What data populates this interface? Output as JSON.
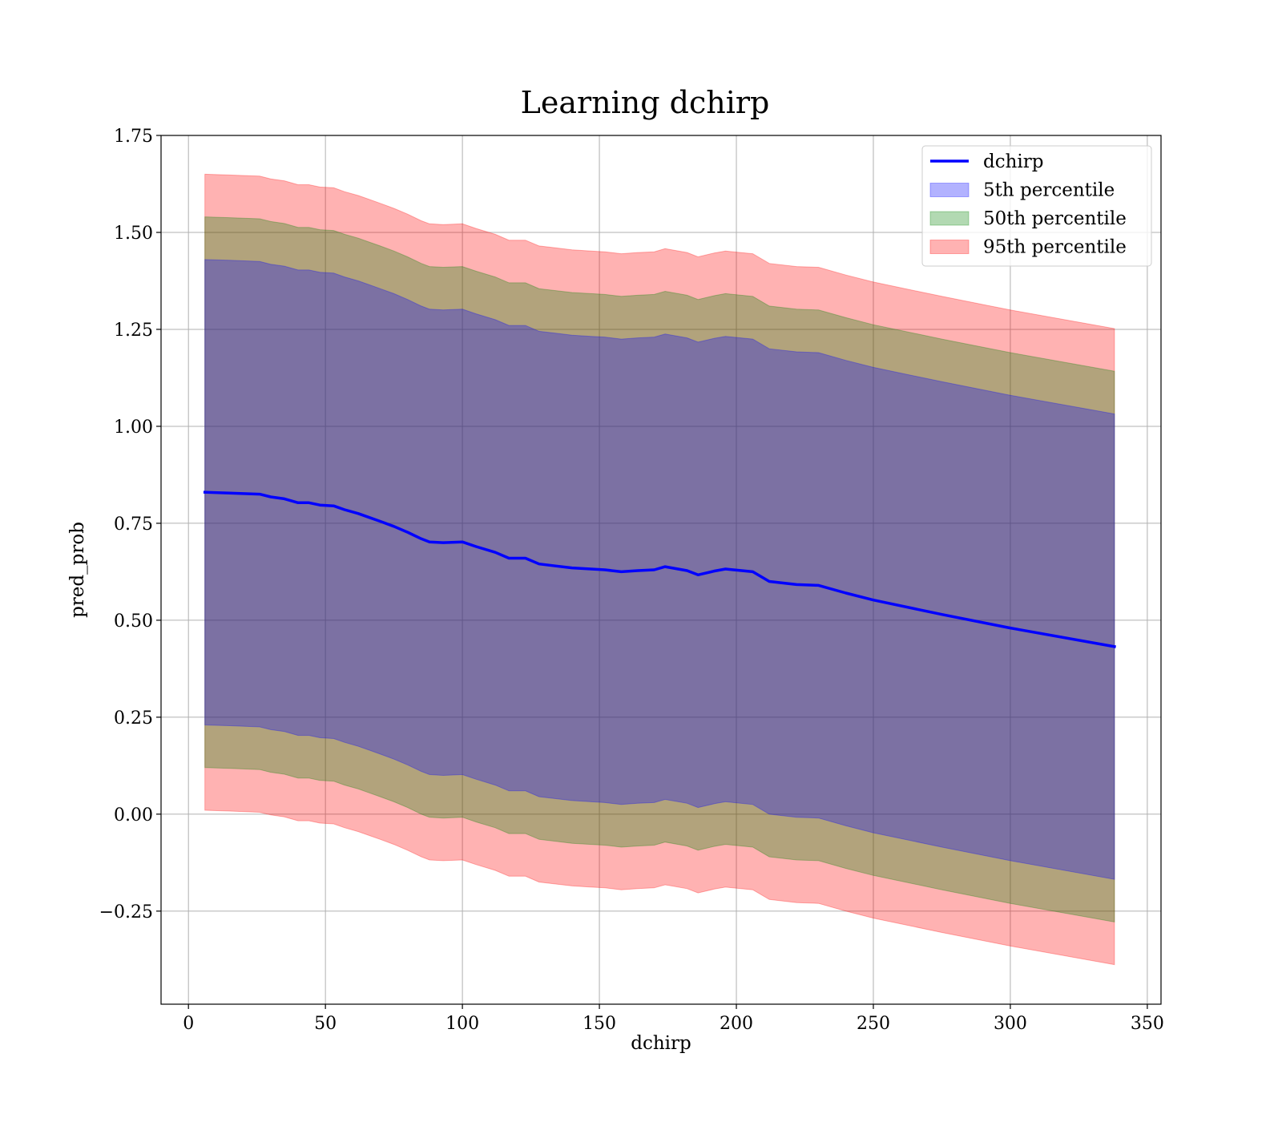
{
  "chart_data": {
    "type": "area",
    "title": "Learning dchirp",
    "xlabel": "dchirp",
    "ylabel": "pred_prob",
    "xlim": [
      -10,
      355
    ],
    "ylim": [
      -0.49,
      1.75
    ],
    "xticks": [
      0,
      50,
      100,
      150,
      200,
      250,
      300,
      350
    ],
    "yticks": [
      -0.25,
      0.0,
      0.25,
      0.5,
      0.75,
      1.0,
      1.25,
      1.5,
      1.75
    ],
    "ytick_labels": [
      "−0.25",
      "0.00",
      "0.25",
      "0.50",
      "0.75",
      "1.00",
      "1.25",
      "1.50",
      "1.75"
    ],
    "grid": true,
    "legend_position": "upper right",
    "x": [
      6,
      15,
      26,
      30,
      35,
      40,
      44,
      48,
      53,
      57,
      62,
      66,
      70,
      75,
      80,
      85,
      88,
      93,
      100,
      105,
      112,
      117,
      123,
      128,
      134,
      140,
      147,
      152,
      158,
      164,
      170,
      174,
      182,
      186,
      192,
      196,
      206,
      212,
      222,
      230,
      240,
      250,
      275,
      300,
      338
    ],
    "series": [
      {
        "name": "dchirp",
        "type": "line",
        "color": "#0000ff",
        "values": [
          0.83,
          0.828,
          0.825,
          0.818,
          0.813,
          0.803,
          0.803,
          0.797,
          0.795,
          0.785,
          0.775,
          0.765,
          0.755,
          0.742,
          0.727,
          0.71,
          0.702,
          0.7,
          0.702,
          0.69,
          0.675,
          0.66,
          0.66,
          0.645,
          0.64,
          0.635,
          0.632,
          0.63,
          0.625,
          0.628,
          0.63,
          0.638,
          0.628,
          0.617,
          0.627,
          0.632,
          0.625,
          0.6,
          0.592,
          0.59,
          0.57,
          0.552,
          0.515,
          0.48,
          0.432
        ]
      },
      {
        "name": "5th percentile",
        "type": "band",
        "color": "#0000ff",
        "opacity": 0.3,
        "half_width": 0.6
      },
      {
        "name": "50th percentile",
        "type": "band",
        "color": "#008000",
        "opacity": 0.3,
        "half_width": 0.71
      },
      {
        "name": "95th percentile",
        "type": "band",
        "color": "#ff0000",
        "opacity": 0.3,
        "half_width": 0.82
      }
    ]
  }
}
